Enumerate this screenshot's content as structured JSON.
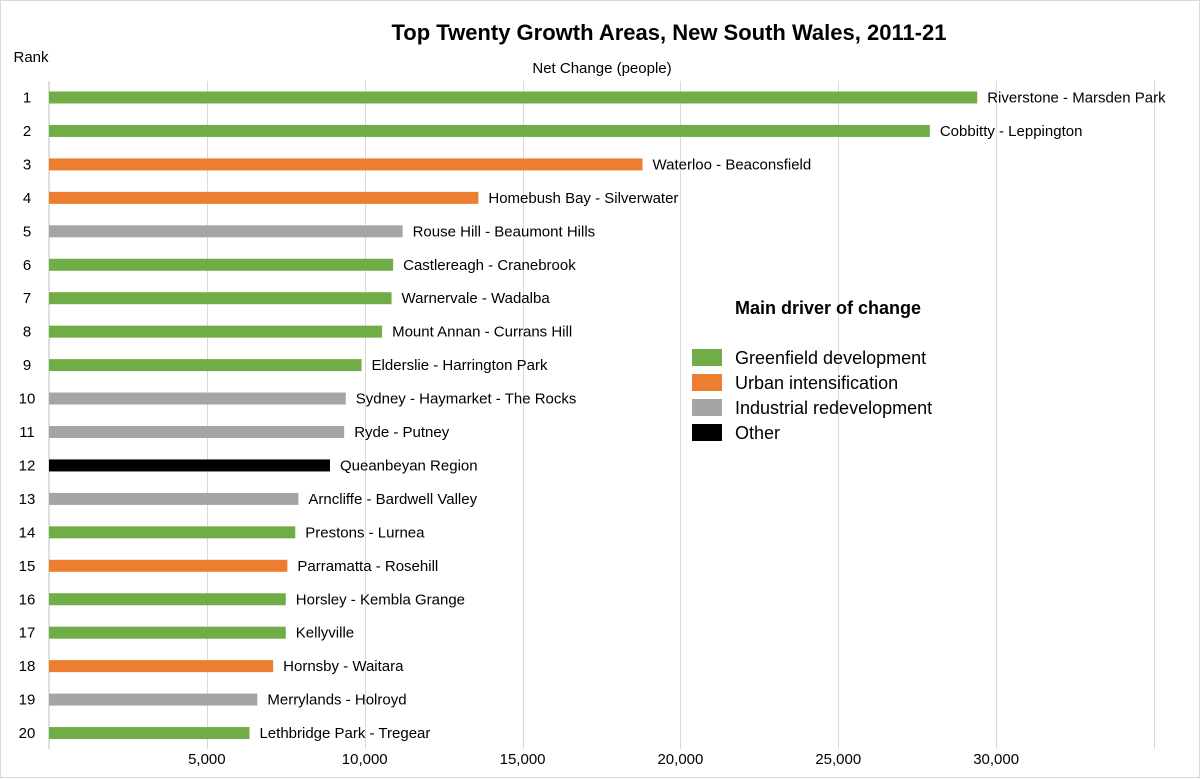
{
  "chart_data": {
    "type": "bar",
    "orientation": "horizontal",
    "title": "Top Twenty Growth Areas, New South Wales, 2011-21",
    "xlabel": "Net Change (people)",
    "ylabel": "Rank",
    "xlim": [
      0,
      35000
    ],
    "xticks": [
      5000,
      10000,
      15000,
      20000,
      25000,
      30000
    ],
    "xtick_labels": [
      "5,000",
      "10,000",
      "15,000",
      "20,000",
      "25,000",
      "30,000"
    ],
    "grid": "vertical",
    "legend": {
      "title": "Main driver of change",
      "position": "right",
      "entries": [
        {
          "key": "greenfield",
          "label": "Greenfield development",
          "color": "#70ad47"
        },
        {
          "key": "urban",
          "label": "Urban intensification",
          "color": "#ed7d31"
        },
        {
          "key": "industrial",
          "label": "Industrial redevelopment",
          "color": "#a5a5a5"
        },
        {
          "key": "other",
          "label": "Other",
          "color": "#000000"
        }
      ]
    },
    "bars": [
      {
        "rank": "1",
        "label": "Riverstone - Marsden Park",
        "value": 29400,
        "driver": "greenfield"
      },
      {
        "rank": "2",
        "label": "Cobbitty - Leppington",
        "value": 27900,
        "driver": "greenfield"
      },
      {
        "rank": "3",
        "label": "Waterloo - Beaconsfield",
        "value": 18800,
        "driver": "urban"
      },
      {
        "rank": "4",
        "label": "Homebush Bay - Silverwater",
        "value": 13600,
        "driver": "urban"
      },
      {
        "rank": "5",
        "label": "Rouse Hill - Beaumont Hills",
        "value": 11200,
        "driver": "industrial"
      },
      {
        "rank": "6",
        "label": "Castlereagh - Cranebrook",
        "value": 10900,
        "driver": "greenfield"
      },
      {
        "rank": "7",
        "label": "Warnervale - Wadalba",
        "value": 10850,
        "driver": "greenfield"
      },
      {
        "rank": "8",
        "label": "Mount Annan - Currans Hill",
        "value": 10550,
        "driver": "greenfield"
      },
      {
        "rank": "9",
        "label": "Elderslie - Harrington Park",
        "value": 9900,
        "driver": "greenfield"
      },
      {
        "rank": "10",
        "label": "Sydney - Haymarket - The Rocks",
        "value": 9400,
        "driver": "industrial"
      },
      {
        "rank": "11",
        "label": "Ryde - Putney",
        "value": 9350,
        "driver": "industrial"
      },
      {
        "rank": "12",
        "label": "Queanbeyan Region",
        "value": 8900,
        "driver": "other"
      },
      {
        "rank": "13",
        "label": "Arncliffe - Bardwell Valley",
        "value": 7900,
        "driver": "industrial"
      },
      {
        "rank": "14",
        "label": "Prestons - Lurnea",
        "value": 7800,
        "driver": "greenfield"
      },
      {
        "rank": "15",
        "label": "Parramatta - Rosehill",
        "value": 7550,
        "driver": "urban"
      },
      {
        "rank": "16",
        "label": "Horsley - Kembla Grange",
        "value": 7500,
        "driver": "greenfield"
      },
      {
        "rank": "17",
        "label": "Kellyville",
        "value": 7500,
        "driver": "greenfield"
      },
      {
        "rank": "18",
        "label": "Hornsby - Waitara",
        "value": 7100,
        "driver": "urban"
      },
      {
        "rank": "19",
        "label": "Merrylands - Holroyd",
        "value": 6600,
        "driver": "industrial"
      },
      {
        "rank": "20",
        "label": "Lethbridge Park - Tregear",
        "value": 6350,
        "driver": "greenfield"
      }
    ]
  }
}
